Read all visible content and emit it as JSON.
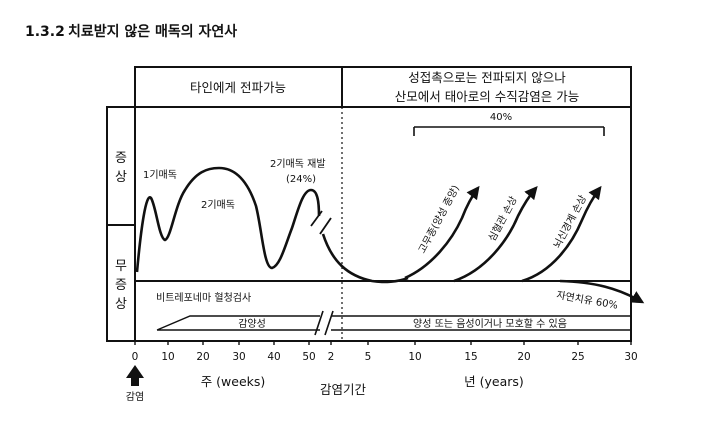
{
  "section": {
    "number": "1.3.2",
    "title": "치료받지 않은 매독의 자연사"
  },
  "header": {
    "left": "타인에게 전파가능",
    "right_line1": "성접촉으로는 전파되지 않으나",
    "right_line2": "산모에서 태아로의 수직감염은 가능"
  },
  "side_labels": {
    "symptomatic": [
      "증",
      "상"
    ],
    "asymptomatic": [
      "무",
      "증",
      "상"
    ]
  },
  "curve_labels": {
    "primary": "1기매독",
    "secondary": "2기매독",
    "relapse_line1": "2기매독 재발",
    "relapse_line2": "(24%)",
    "bracket_percent": "40%",
    "gumma": "고무종(양성 종양)",
    "cardiovascular": "심혈관 손상",
    "neuro": "뇌신경계 손상",
    "spontaneous_cure": "자연치유 60%"
  },
  "test_row": {
    "title": "비트레포네마 혈청검사",
    "positive": "감양성",
    "later": "양성 또는 음성이거나 모호할 수 있음"
  },
  "axis": {
    "weeks_ticks": [
      "0",
      "10",
      "20",
      "30",
      "40",
      "50",
      "2"
    ],
    "years_ticks": [
      "5",
      "10",
      "15",
      "20",
      "25",
      "30"
    ],
    "weeks_label": "주 (weeks)",
    "years_label": "년 (years)",
    "center_label": "감염기간",
    "infection_label": "감염"
  }
}
